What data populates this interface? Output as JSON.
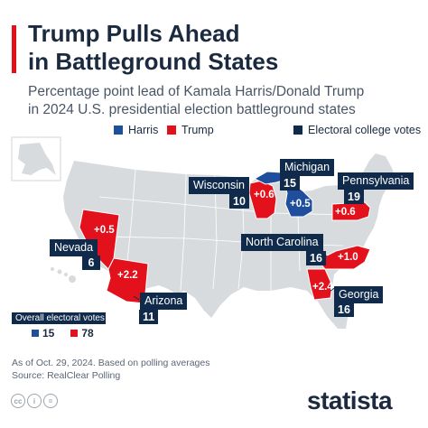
{
  "header": {
    "title_line1": "Trump Pulls Ahead",
    "title_line2": "in Battleground States",
    "subtitle_line1": "Percentage point lead of Kamala Harris/Donald Trump",
    "subtitle_line2": "in 2024 U.S. presidential election battleground states"
  },
  "legend": {
    "harris": "Harris",
    "trump": "Trump",
    "electoral": "Electoral college votes"
  },
  "colors": {
    "harris": "#1f4e9c",
    "trump": "#e3111b",
    "dark": "#0f2a4a",
    "land": "#d8dbde",
    "border": "#ffffff"
  },
  "states": {
    "wisconsin": {
      "name": "Wisconsin",
      "votes": "10",
      "lead": "+0.6",
      "leader": "trump"
    },
    "michigan": {
      "name": "Michigan",
      "votes": "15",
      "lead": "+0.5",
      "leader": "harris"
    },
    "pennsylvania": {
      "name": "Pennsylvania",
      "votes": "19",
      "lead": "+0.6",
      "leader": "trump"
    },
    "nevada": {
      "name": "Nevada",
      "votes": "6",
      "lead": "+0.5",
      "leader": "trump"
    },
    "arizona": {
      "name": "Arizona",
      "votes": "11",
      "lead": "+2.2",
      "leader": "trump"
    },
    "north_carolina": {
      "name": "North Carolina",
      "votes": "16",
      "lead": "+1.0",
      "leader": "trump"
    },
    "georgia": {
      "name": "Georgia",
      "votes": "16",
      "lead": "+2.4",
      "leader": "trump"
    }
  },
  "overall": {
    "header": "Overall electoral votes",
    "harris_votes": "15",
    "trump_votes": "78"
  },
  "footer": {
    "note": "As of Oct. 29, 2024. Based on polling averages",
    "source": "Source: RealClear Polling",
    "brand": "statista",
    "cc_icons": [
      "cc-icon",
      "by-icon",
      "equals-icon"
    ]
  }
}
